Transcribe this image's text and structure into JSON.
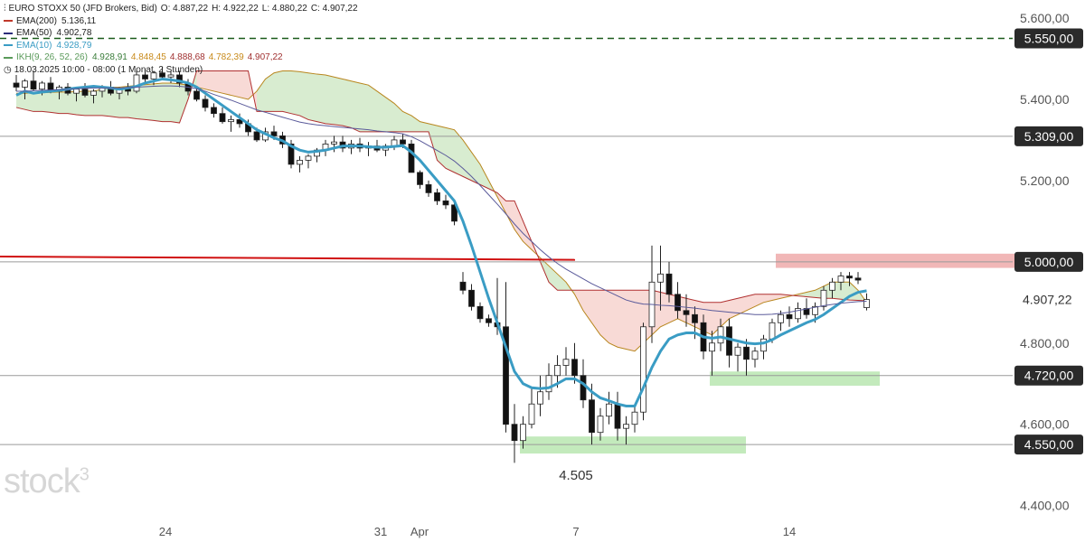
{
  "header": {
    "symbol_icon": "candlestick-icon",
    "title": "EURO STOXX 50 (JFD Brokers, Bid)",
    "ohlc": {
      "open": "O: 4.887,22",
      "high": "H: 4.922,22",
      "low": "L: 4.880,22",
      "close": "C: 4.907,22"
    }
  },
  "legend": [
    {
      "label": "EMA(200)",
      "value": "5.136,11",
      "color": "#c0392b"
    },
    {
      "label": "EMA(50)",
      "value": "4.902,78",
      "color": "#2c2c7a"
    },
    {
      "label": "EMA(10)",
      "value": "4.928,79",
      "color": "#3a9cc4"
    },
    {
      "label": "IKH(9, 26, 52, 26)",
      "values": [
        "4.928,91",
        "4.848,45",
        "4.888,68",
        "4.782,39",
        "4.907,22"
      ],
      "value_colors": [
        "#3a7d3a",
        "#c88a1a",
        "#a03030",
        "#c88a1a",
        "#a03030"
      ],
      "color": "#5a9a5a"
    }
  ],
  "timeframe": {
    "icon": "clock-icon",
    "text": "18.03.2025 10:00 - 08:00 (1 Monat, 2 Stunden)"
  },
  "watermark": {
    "text": "stock",
    "sup": "3"
  },
  "colors": {
    "bull_candle": "#ffffff",
    "bear_candle": "#111111",
    "ema10": "#3a9cc4",
    "ema50": "#5a5a9a",
    "cloud_bull": "#d8ecd0",
    "cloud_bear": "#f8dad6",
    "support_zone": "#b8e6b0",
    "resistance_zone": "#eeaaaa",
    "dashed_level": "#1a5a1a",
    "red_trendline": "#d01010",
    "price_badge": "#2a2a2a"
  },
  "chart_data": {
    "type": "candlestick",
    "title": "EURO STOXX 50 (JFD Brokers, Bid)",
    "y_axis": {
      "ticks": [
        "5.600,00",
        "5.400,00",
        "5.200,00",
        "4.800,00",
        "4.600,00",
        "4.400,00"
      ],
      "range": [
        4330,
        5650
      ],
      "position": "right"
    },
    "x_axis": {
      "ticks": [
        "24",
        "31",
        "Apr",
        "7",
        "14"
      ]
    },
    "levels": [
      {
        "label": "5.550,00",
        "value": 5550,
        "style": "dashed"
      },
      {
        "label": "5.309,00",
        "value": 5309,
        "style": "solid"
      },
      {
        "label": "5.000,00",
        "value": 5000,
        "style": "solid"
      },
      {
        "label": "4.720,00",
        "value": 4720,
        "style": "solid"
      },
      {
        "label": "4.550,00",
        "value": 4550,
        "style": "solid"
      }
    ],
    "current_price": {
      "label": "4.907,22",
      "value": 4907.22
    },
    "annotations": [
      {
        "text": "4.505",
        "value": 4505
      }
    ],
    "zones": [
      {
        "kind": "resistance",
        "from": 4985,
        "to": 5020
      },
      {
        "kind": "support",
        "from": 4695,
        "to": 4730
      },
      {
        "kind": "support",
        "from": 4528,
        "to": 4570
      }
    ],
    "candles_ohlc": [
      [
        5440,
        5460,
        5420,
        5430
      ],
      [
        5430,
        5450,
        5400,
        5445
      ],
      [
        5445,
        5470,
        5420,
        5425
      ],
      [
        5425,
        5445,
        5410,
        5440
      ],
      [
        5440,
        5455,
        5415,
        5420
      ],
      [
        5420,
        5435,
        5400,
        5430
      ],
      [
        5430,
        5440,
        5410,
        5415
      ],
      [
        5415,
        5430,
        5395,
        5425
      ],
      [
        5425,
        5440,
        5405,
        5410
      ],
      [
        5410,
        5425,
        5390,
        5420
      ],
      [
        5420,
        5435,
        5405,
        5430
      ],
      [
        5430,
        5445,
        5410,
        5415
      ],
      [
        5415,
        5430,
        5400,
        5425
      ],
      [
        5425,
        5440,
        5410,
        5420
      ],
      [
        5420,
        5470,
        5415,
        5460
      ],
      [
        5460,
        5475,
        5440,
        5450
      ],
      [
        5450,
        5470,
        5435,
        5465
      ],
      [
        5465,
        5480,
        5450,
        5455
      ],
      [
        5455,
        5470,
        5440,
        5460
      ],
      [
        5460,
        5470,
        5430,
        5440
      ],
      [
        5440,
        5450,
        5410,
        5420
      ],
      [
        5420,
        5430,
        5395,
        5400
      ],
      [
        5400,
        5410,
        5370,
        5380
      ],
      [
        5380,
        5390,
        5355,
        5365
      ],
      [
        5365,
        5380,
        5340,
        5345
      ],
      [
        5345,
        5360,
        5320,
        5350
      ],
      [
        5350,
        5365,
        5330,
        5340
      ],
      [
        5340,
        5350,
        5310,
        5320
      ],
      [
        5320,
        5330,
        5295,
        5300
      ],
      [
        5300,
        5330,
        5295,
        5320
      ],
      [
        5320,
        5335,
        5300,
        5310
      ],
      [
        5310,
        5320,
        5280,
        5290
      ],
      [
        5290,
        5300,
        5230,
        5240
      ],
      [
        5240,
        5260,
        5220,
        5250
      ],
      [
        5250,
        5265,
        5230,
        5260
      ],
      [
        5260,
        5280,
        5245,
        5275
      ],
      [
        5275,
        5300,
        5260,
        5290
      ],
      [
        5290,
        5310,
        5270,
        5295
      ],
      [
        5295,
        5310,
        5270,
        5280
      ],
      [
        5280,
        5300,
        5265,
        5290
      ],
      [
        5290,
        5305,
        5270,
        5280
      ],
      [
        5280,
        5295,
        5260,
        5285
      ],
      [
        5285,
        5300,
        5270,
        5275
      ],
      [
        5275,
        5290,
        5260,
        5285
      ],
      [
        5285,
        5310,
        5275,
        5300
      ],
      [
        5300,
        5315,
        5280,
        5290
      ],
      [
        5290,
        5300,
        5240,
        5220
      ],
      [
        5220,
        5225,
        5180,
        5190
      ],
      [
        5190,
        5200,
        5160,
        5170
      ],
      [
        5170,
        5180,
        5140,
        5150
      ],
      [
        5150,
        5165,
        5130,
        5140
      ],
      [
        5140,
        5150,
        5090,
        5100
      ],
      [
        4950,
        4975,
        4920,
        4930
      ],
      [
        4930,
        4945,
        4880,
        4890
      ],
      [
        4890,
        4900,
        4850,
        4860
      ],
      [
        4860,
        4870,
        4840,
        4850
      ],
      [
        4850,
        4960,
        4820,
        4840
      ],
      [
        4840,
        4950,
        4580,
        4600
      ],
      [
        4600,
        4650,
        4505,
        4560
      ],
      [
        4560,
        4620,
        4540,
        4600
      ],
      [
        4600,
        4690,
        4590,
        4650
      ],
      [
        4650,
        4720,
        4620,
        4680
      ],
      [
        4680,
        4750,
        4660,
        4720
      ],
      [
        4720,
        4770,
        4690,
        4745
      ],
      [
        4745,
        4790,
        4720,
        4760
      ],
      [
        4760,
        4800,
        4700,
        4720
      ],
      [
        4720,
        4760,
        4640,
        4660
      ],
      [
        4660,
        4700,
        4550,
        4580
      ],
      [
        4580,
        4640,
        4560,
        4620
      ],
      [
        4620,
        4680,
        4600,
        4650
      ],
      [
        4650,
        4680,
        4560,
        4590
      ],
      [
        4590,
        4620,
        4550,
        4600
      ],
      [
        4600,
        4650,
        4580,
        4630
      ],
      [
        4630,
        4850,
        4610,
        4840
      ],
      [
        4840,
        5040,
        4800,
        4950
      ],
      [
        4950,
        5040,
        4880,
        4970
      ],
      [
        4970,
        5000,
        4900,
        4920
      ],
      [
        4920,
        4950,
        4860,
        4880
      ],
      [
        4880,
        4920,
        4840,
        4870
      ],
      [
        4870,
        4890,
        4810,
        4850
      ],
      [
        4850,
        4870,
        4760,
        4780
      ],
      [
        4780,
        4830,
        4720,
        4800
      ],
      [
        4800,
        4860,
        4780,
        4840
      ],
      [
        4840,
        4860,
        4740,
        4770
      ],
      [
        4770,
        4800,
        4730,
        4790
      ],
      [
        4790,
        4810,
        4720,
        4760
      ],
      [
        4760,
        4790,
        4740,
        4780
      ],
      [
        4780,
        4820,
        4760,
        4810
      ],
      [
        4810,
        4860,
        4800,
        4850
      ],
      [
        4850,
        4880,
        4830,
        4870
      ],
      [
        4870,
        4890,
        4840,
        4860
      ],
      [
        4860,
        4900,
        4850,
        4885
      ],
      [
        4885,
        4910,
        4860,
        4870
      ],
      [
        4870,
        4900,
        4850,
        4890
      ],
      [
        4890,
        4940,
        4880,
        4930
      ],
      [
        4930,
        4960,
        4910,
        4950
      ],
      [
        4950,
        4975,
        4930,
        4965
      ],
      [
        4965,
        4975,
        4940,
        4960
      ],
      [
        4960,
        4975,
        4945,
        4955
      ],
      [
        4887.22,
        4922.22,
        4880.22,
        4907.22
      ]
    ],
    "series": [
      {
        "name": "EMA(10)",
        "values": [
          5410,
          5420,
          5415,
          5418,
          5420,
          5422,
          5425,
          5428,
          5430,
          5432,
          5430,
          5428,
          5425,
          5428,
          5432,
          5440,
          5445,
          5450,
          5448,
          5445,
          5440,
          5430,
          5415,
          5400,
          5385,
          5370,
          5355,
          5340,
          5325,
          5315,
          5305,
          5298,
          5285,
          5275,
          5270,
          5272,
          5275,
          5280,
          5285,
          5285,
          5285,
          5283,
          5282,
          5282,
          5284,
          5286,
          5270,
          5250,
          5225,
          5200,
          5175,
          5150,
          5100,
          5040,
          4975,
          4910,
          4850,
          4790,
          4730,
          4700,
          4690,
          4688,
          4690,
          4700,
          4712,
          4712,
          4700,
          4680,
          4665,
          4658,
          4650,
          4645,
          4645,
          4690,
          4740,
          4780,
          4810,
          4820,
          4825,
          4825,
          4815,
          4812,
          4815,
          4810,
          4805,
          4800,
          4798,
          4800,
          4808,
          4820,
          4830,
          4840,
          4850,
          4858,
          4870,
          4885,
          4900,
          4915,
          4925,
          4928.79
        ]
      },
      {
        "name": "EMA(50)",
        "values": [
          5420,
          5420,
          5421,
          5422,
          5423,
          5424,
          5425,
          5426,
          5427,
          5428,
          5428,
          5428,
          5428,
          5429,
          5430,
          5431,
          5432,
          5433,
          5433,
          5432,
          5430,
          5426,
          5420,
          5412,
          5405,
          5398,
          5390,
          5382,
          5374,
          5368,
          5362,
          5356,
          5350,
          5344,
          5340,
          5337,
          5335,
          5333,
          5331,
          5329,
          5327,
          5325,
          5322,
          5320,
          5318,
          5315,
          5308,
          5298,
          5286,
          5274,
          5262,
          5248,
          5230,
          5210,
          5188,
          5165,
          5142,
          5118,
          5093,
          5070,
          5050,
          5030,
          5012,
          4996,
          4982,
          4970,
          4958,
          4946,
          4936,
          4926,
          4916,
          4906,
          4900,
          4896,
          4895,
          4893,
          4892,
          4890,
          4888,
          4886,
          4883,
          4880,
          4878,
          4876,
          4874,
          4872,
          4870,
          4870,
          4871,
          4873,
          4876,
          4880,
          4884,
          4888,
          4892,
          4895,
          4898,
          4900,
          4902,
          4902.78
        ]
      }
    ],
    "ichimoku_span_a": [
      5415,
      5415,
      5416,
      5416,
      5417,
      5418,
      5418,
      5419,
      5420,
      5420,
      5425,
      5430,
      5430,
      5432,
      5434,
      5436,
      5438,
      5440,
      5440,
      5438,
      5435,
      5430,
      5425,
      5420,
      5415,
      5410,
      5405,
      5400,
      5420,
      5450,
      5465,
      5470,
      5470,
      5468,
      5465,
      5462,
      5460,
      5455,
      5450,
      5445,
      5440,
      5435,
      5420,
      5405,
      5390,
      5370,
      5360,
      5345,
      5340,
      5335,
      5330,
      5325,
      5300,
      5270,
      5240,
      5200,
      5160,
      5120,
      5080,
      5050,
      5030,
      5010,
      4990,
      4970,
      4950,
      4920,
      4880,
      4850,
      4820,
      4800,
      4790,
      4785,
      4780,
      4800,
      4820,
      4840,
      4850,
      4860,
      4850,
      4840,
      4830,
      4820,
      4840,
      4860,
      4870,
      4880,
      4890,
      4900,
      4905,
      4910,
      4915,
      4920,
      4925,
      4930,
      4940,
      4950,
      4950,
      4950,
      4930,
      4900
    ],
    "ichimoku_span_b": [
      5380,
      5375,
      5370,
      5370,
      5368,
      5365,
      5365,
      5362,
      5360,
      5360,
      5360,
      5358,
      5355,
      5355,
      5352,
      5350,
      5348,
      5345,
      5345,
      5342,
      5400,
      5470,
      5470,
      5470,
      5470,
      5470,
      5470,
      5470,
      5370,
      5370,
      5370,
      5370,
      5365,
      5360,
      5350,
      5345,
      5340,
      5338,
      5335,
      5330,
      5320,
      5320,
      5320,
      5320,
      5320,
      5320,
      5320,
      5320,
      5320,
      5250,
      5230,
      5220,
      5210,
      5200,
      5190,
      5180,
      5170,
      5150,
      5150,
      5100,
      5050,
      5000,
      4950,
      4930,
      4930,
      4930,
      4930,
      4930,
      4930,
      4930,
      4930,
      4930,
      4930,
      4930,
      4930,
      4925,
      4920,
      4915,
      4910,
      4905,
      4900,
      4900,
      4900,
      4905,
      4910,
      4915,
      4920,
      4920,
      4920,
      4920,
      4918,
      4916,
      4914,
      4912,
      4910,
      4910,
      4908,
      4906,
      4905,
      4904
    ]
  }
}
